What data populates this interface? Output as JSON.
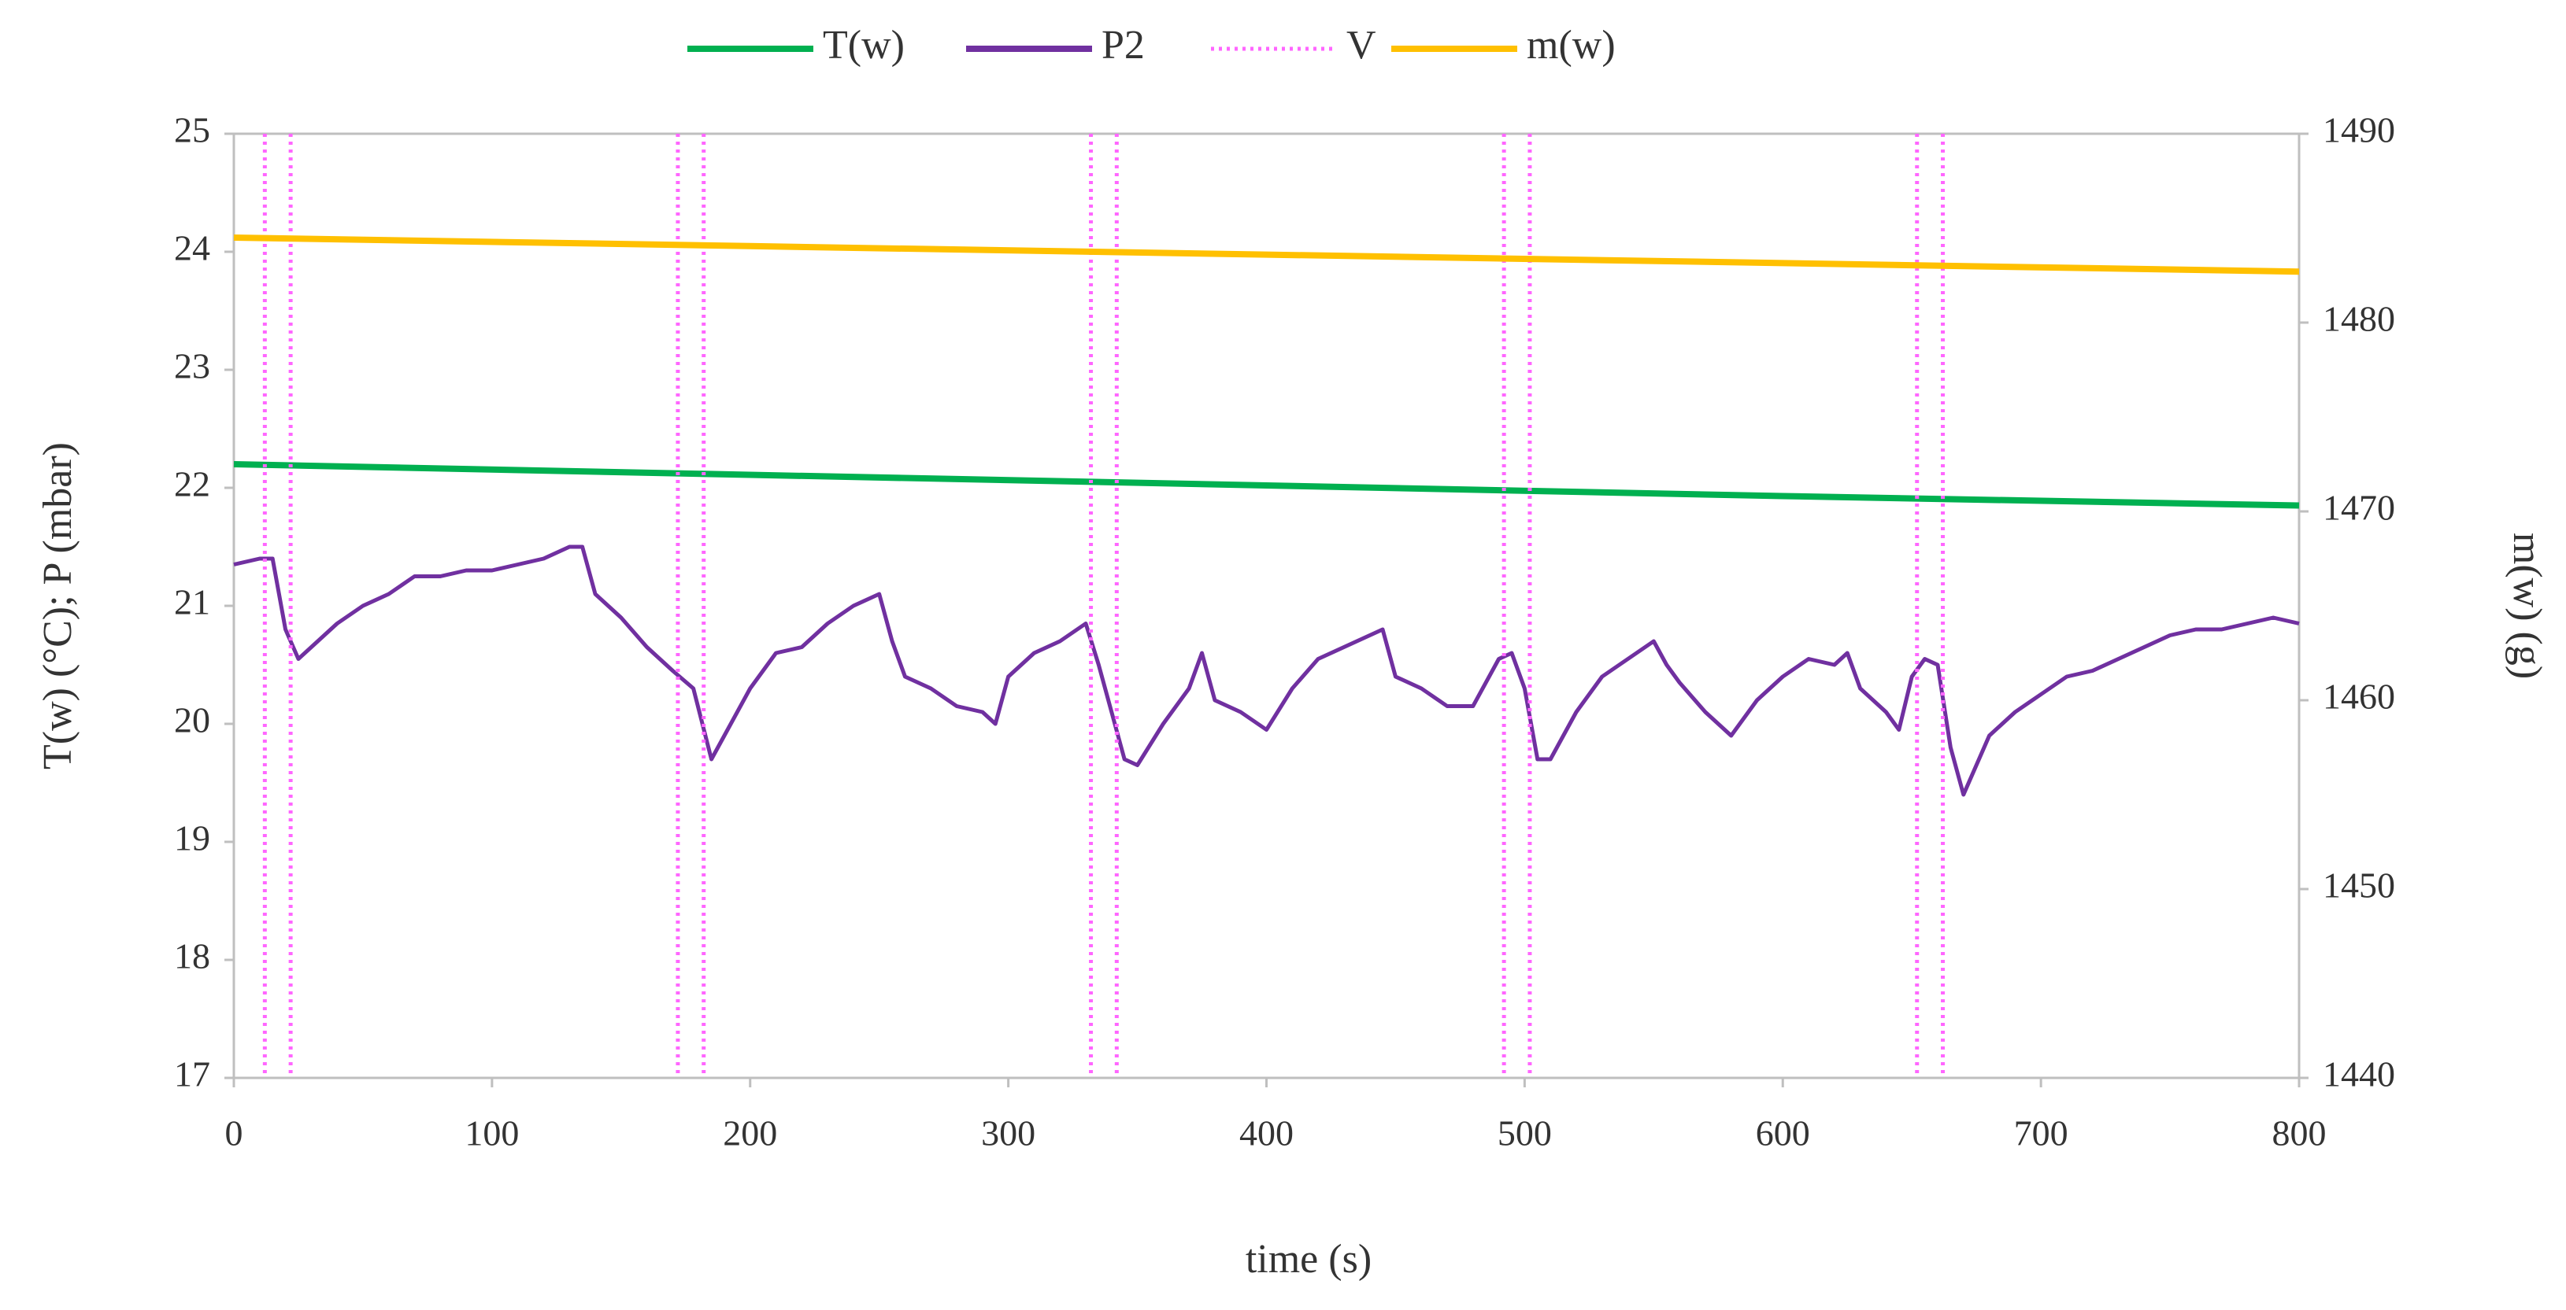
{
  "chart_data": {
    "type": "line",
    "xlabel": "time (s)",
    "ylabel": "T(w) (°C); P (mbar)",
    "y2label": "m(w) (g)",
    "xlim": [
      0,
      800
    ],
    "xticks": [
      0,
      100,
      200,
      300,
      400,
      500,
      600,
      700,
      800
    ],
    "ylim": [
      17,
      25
    ],
    "yticks": [
      17,
      18,
      19,
      20,
      21,
      22,
      23,
      24,
      25
    ],
    "y2lim": [
      1440,
      1490
    ],
    "y2ticks": [
      1440,
      1450,
      1460,
      1470,
      1480,
      1490
    ],
    "legend": "top",
    "series": [
      {
        "name": "T(w)",
        "color": "#00b050",
        "x": [
          0,
          200,
          400,
          600,
          800
        ],
        "values": [
          22.2,
          22.11,
          22.02,
          21.93,
          21.85
        ]
      },
      {
        "name": "P2",
        "color": "#7030a0",
        "x": [
          0,
          10,
          15,
          20,
          25,
          30,
          40,
          50,
          60,
          70,
          80,
          90,
          100,
          110,
          120,
          130,
          135,
          140,
          150,
          160,
          170,
          178,
          185,
          190,
          200,
          210,
          220,
          230,
          240,
          250,
          255,
          260,
          270,
          280,
          290,
          295,
          300,
          310,
          320,
          330,
          335,
          340,
          345,
          350,
          360,
          370,
          375,
          380,
          390,
          400,
          410,
          420,
          430,
          440,
          445,
          450,
          460,
          470,
          480,
          490,
          495,
          500,
          505,
          510,
          520,
          530,
          540,
          550,
          555,
          560,
          570,
          580,
          590,
          600,
          610,
          620,
          625,
          630,
          640,
          645,
          650,
          655,
          660,
          665,
          670,
          680,
          690,
          700,
          710,
          720,
          730,
          740,
          750,
          760,
          770,
          780,
          790,
          800
        ],
        "values": [
          21.35,
          21.4,
          21.4,
          20.8,
          20.55,
          20.65,
          20.85,
          21.0,
          21.1,
          21.25,
          21.25,
          21.3,
          21.3,
          21.35,
          21.4,
          21.5,
          21.5,
          21.1,
          20.9,
          20.65,
          20.45,
          20.3,
          19.7,
          19.9,
          20.3,
          20.6,
          20.65,
          20.85,
          21.0,
          21.1,
          20.7,
          20.4,
          20.3,
          20.15,
          20.1,
          20.0,
          20.4,
          20.6,
          20.7,
          20.85,
          20.5,
          20.1,
          19.7,
          19.65,
          20.0,
          20.3,
          20.6,
          20.2,
          20.1,
          19.95,
          20.3,
          20.55,
          20.65,
          20.75,
          20.8,
          20.4,
          20.3,
          20.15,
          20.15,
          20.55,
          20.6,
          20.3,
          19.7,
          19.7,
          20.1,
          20.4,
          20.55,
          20.7,
          20.5,
          20.35,
          20.1,
          19.9,
          20.2,
          20.4,
          20.55,
          20.5,
          20.6,
          20.3,
          20.1,
          19.95,
          20.4,
          20.55,
          20.5,
          19.8,
          19.4,
          19.9,
          20.1,
          20.25,
          20.4,
          20.45,
          20.55,
          20.65,
          20.75,
          20.8,
          20.8,
          20.85,
          20.9,
          20.85
        ]
      },
      {
        "name": "V",
        "color": "#ff66ff",
        "dotted": true,
        "vertical": true,
        "x": [
          12,
          22,
          172,
          182,
          332,
          342,
          492,
          502,
          652,
          662
        ]
      },
      {
        "name": "m(w)",
        "color": "#ffc000",
        "axis": "y2",
        "x": [
          0,
          200,
          400,
          600,
          800
        ],
        "values": [
          1484.5,
          1484.05,
          1483.6,
          1483.15,
          1482.7
        ]
      }
    ]
  }
}
